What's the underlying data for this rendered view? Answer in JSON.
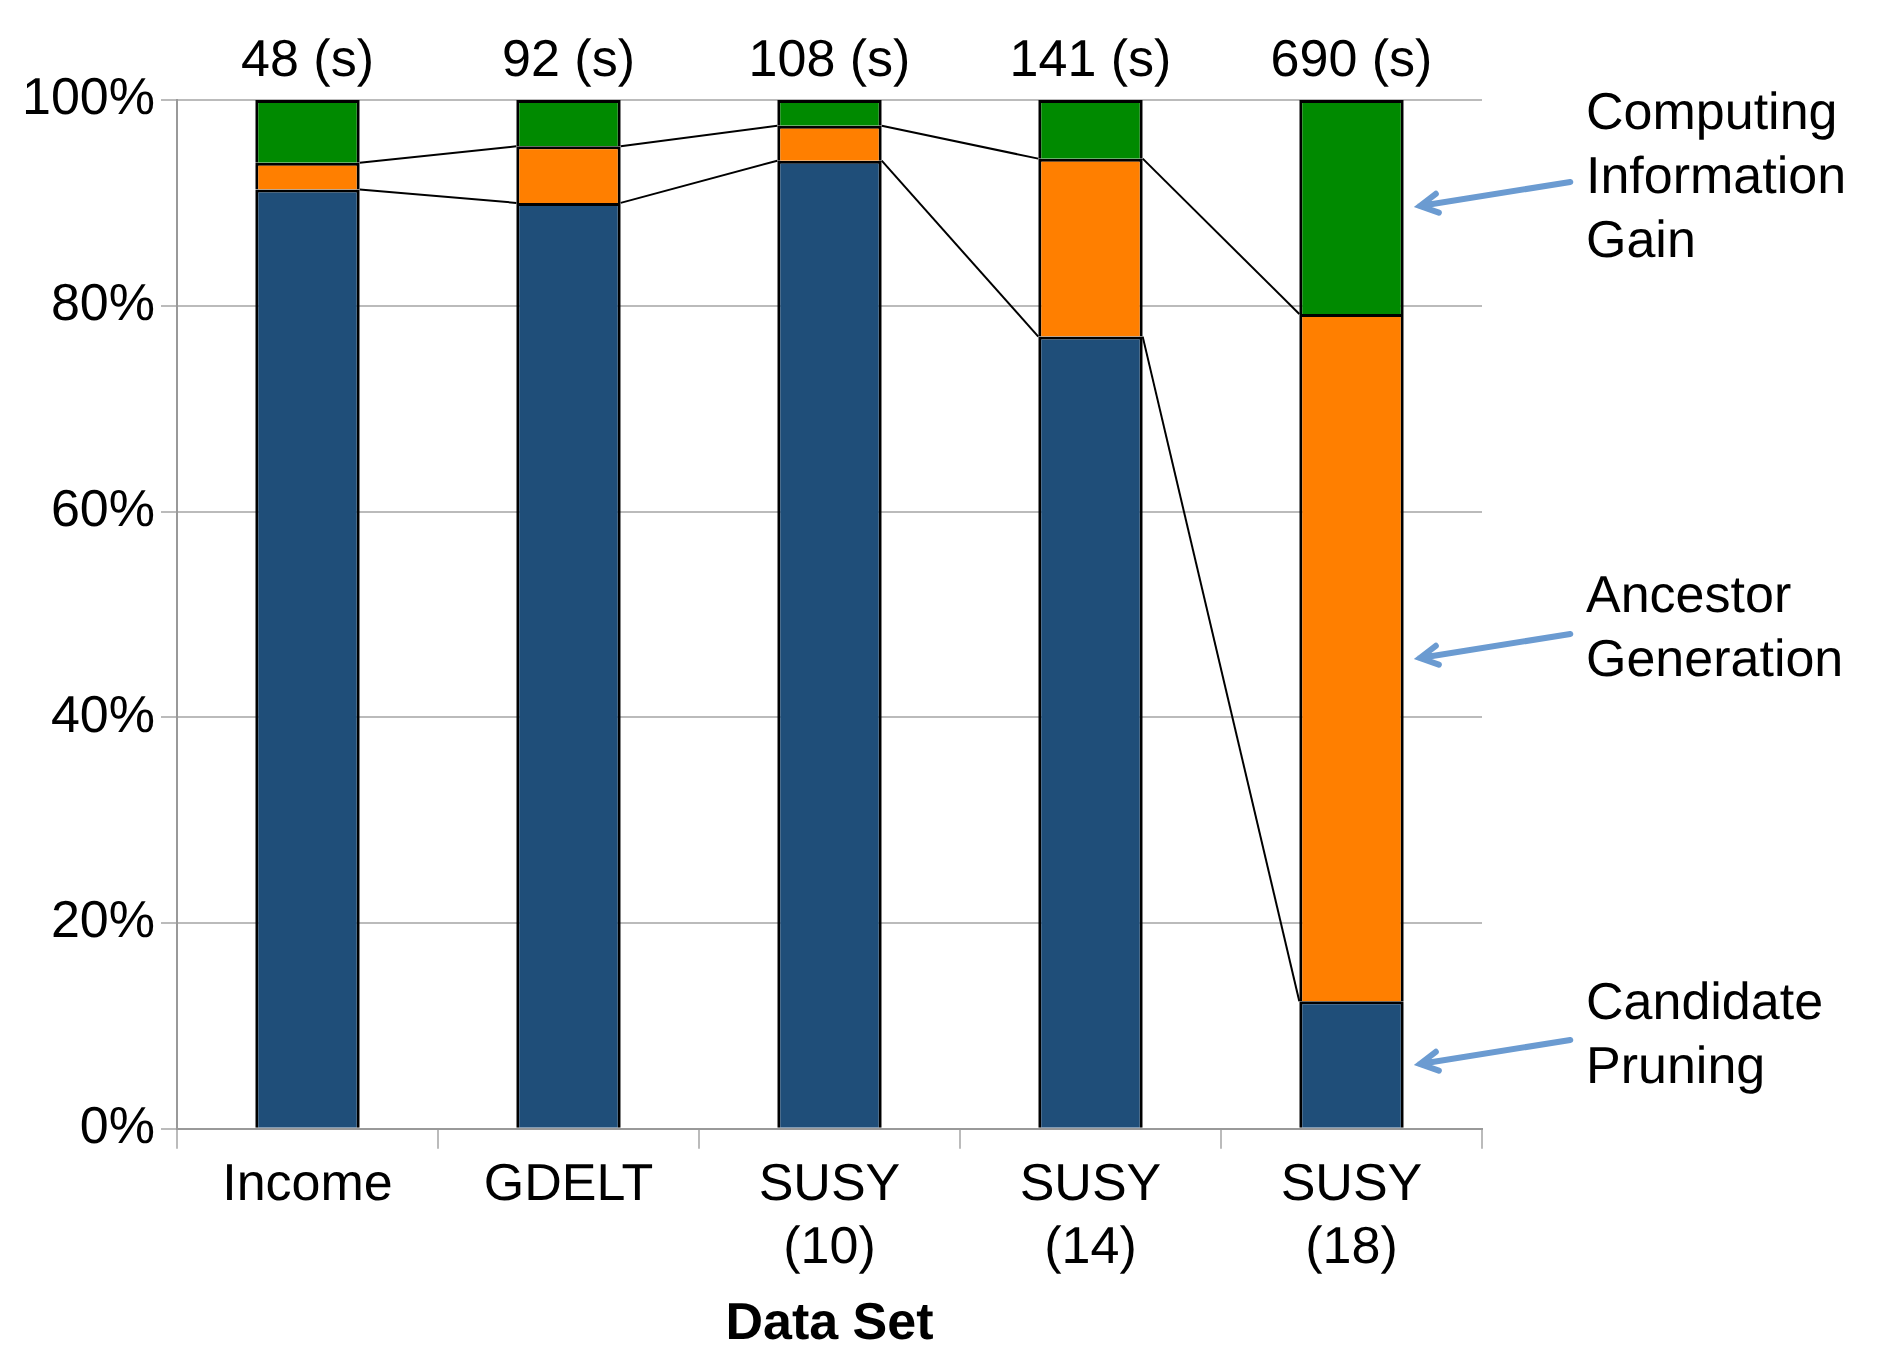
{
  "chart_data": {
    "type": "bar",
    "stacked": true,
    "xlabel": "Data Set",
    "categories": [
      "Income",
      "GDELT",
      "SUSY (10)",
      "SUSY (14)",
      "SUSY (18)"
    ],
    "series": [
      {
        "name": "Candidate Pruning",
        "color": "#1f4e79",
        "values": [
          91.3,
          90.0,
          94.1,
          77.0,
          12.4
        ]
      },
      {
        "name": "Ancestor Generation",
        "color": "#ff7f00",
        "values": [
          2.6,
          5.5,
          3.4,
          17.3,
          66.8
        ]
      },
      {
        "name": "Computing Information Gain",
        "color": "#008a00",
        "values": [
          6.1,
          4.5,
          2.5,
          5.7,
          20.8
        ]
      }
    ],
    "annotations": [
      {
        "text": "48 (s)",
        "x": "Income",
        "y": 100
      },
      {
        "text": "92 (s)",
        "x": "GDELT",
        "y": 100
      },
      {
        "text": "108 (s)",
        "x": "SUSY (10)",
        "y": 100
      },
      {
        "text": "141 (s)",
        "x": "SUSY (14)",
        "y": 100
      },
      {
        "text": "690 (s)",
        "x": "SUSY (18)",
        "y": 100
      }
    ],
    "ylim": [
      0,
      100
    ],
    "yticks": [
      {
        "value": 0,
        "label": "0%"
      },
      {
        "value": 20,
        "label": "20%"
      },
      {
        "value": 40,
        "label": "40%"
      },
      {
        "value": 60,
        "label": "60%"
      },
      {
        "value": 80,
        "label": "80%"
      },
      {
        "value": 100,
        "label": "100%"
      }
    ],
    "grid": "y",
    "legend": false
  }
}
